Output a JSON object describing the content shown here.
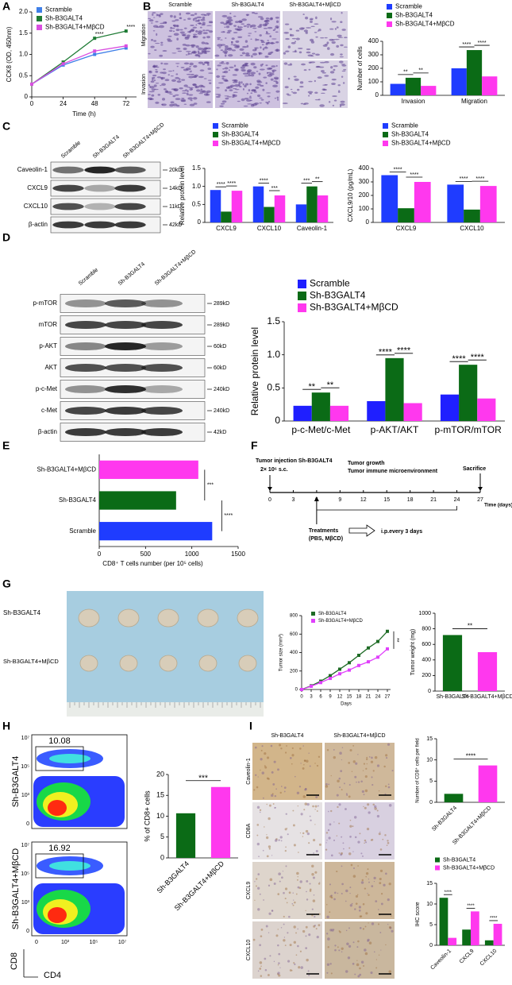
{
  "figure": {
    "panel_labels": [
      "A",
      "B",
      "C",
      "D",
      "E",
      "F",
      "G",
      "H",
      "I"
    ],
    "b_images": {
      "columns": [
        "Scramble",
        "Sh-B3GALT4",
        "Sh-B3GALT4+MβCD"
      ],
      "rows": [
        "Migration",
        "Invasion"
      ]
    },
    "c_blot": {
      "columns": [
        "Scramble",
        "Sh-B3GALT4",
        "Sh-B3GALT4+MβCD"
      ],
      "rows": [
        {
          "name": "Caveolin-1",
          "size": "20kD"
        },
        {
          "name": "CXCL9",
          "size": "14kD"
        },
        {
          "name": "CXCL10",
          "size": "11kD"
        },
        {
          "name": "β-actin",
          "size": "42kD"
        }
      ]
    },
    "d_blot": {
      "columns": [
        "Scramble",
        "Sh-B3GALT4",
        "Sh-B3GALT4+MβCD"
      ],
      "rows": [
        {
          "name": "p-mTOR",
          "size": "289kD"
        },
        {
          "name": "mTOR",
          "size": "289kD"
        },
        {
          "name": "p-AKT",
          "size": "60kD"
        },
        {
          "name": "AKT",
          "size": "60kD"
        },
        {
          "name": "p-c-Met",
          "size": "240kD"
        },
        {
          "name": "c-Met",
          "size": "240kD"
        },
        {
          "name": "β-actin",
          "size": "42kD"
        }
      ]
    },
    "f_timeline": {
      "injection": "Tumor injection Sh-B3GALT4",
      "dose": "2× 10⁶ s.c.",
      "growth": "Tumor growth",
      "microenvironment": "Tumor immune microenvironment",
      "sacrifice": "Sacrifice",
      "ticks": [
        0,
        3,
        6,
        9,
        12,
        15,
        18,
        21,
        24,
        27
      ],
      "axis_label": "Time (days)",
      "treatments": "Treatments",
      "agents": "(PBS, MβCD)",
      "schedule": "i.p.every 3 days"
    },
    "g_photo": {
      "rows": [
        "Sh-B3GALT4",
        "Sh-B3GALT4+MβCD"
      ]
    },
    "h_flow": {
      "rows": [
        "Sh-B3GALT4",
        "Sh-B3GALT4+MβCD"
      ],
      "gates": [
        "10.08",
        "16.92"
      ],
      "y_label": "CD8",
      "x_label": "CD4",
      "y_ticks": [
        "10⁷",
        "10⁵",
        "10³",
        "0"
      ],
      "x_ticks": [
        "0",
        "10³",
        "10⁵",
        "10⁷"
      ]
    },
    "i_ihc": {
      "columns": [
        "Sh-B3GALT4",
        "Sh-B3GALT4+MβCD"
      ],
      "rows": [
        "Caveolin-1",
        "CD8A",
        "CXCL9",
        "CXCL10"
      ]
    }
  },
  "chart_data": [
    {
      "type": "line",
      "ylabel": "CCK8 (OD, 450nm)",
      "xlabel": "Time (h)",
      "x": [
        0,
        24,
        48,
        72
      ],
      "xlim": [
        0,
        80
      ],
      "xticks": [
        0,
        24,
        48,
        72
      ],
      "ylim": [
        0,
        2
      ],
      "yticks": [
        0,
        0.5,
        {
          "value": 1,
          "label": "1.0"
        },
        1.5,
        {
          "value": 2,
          "label": "2.0"
        }
      ],
      "legend": true,
      "series": [
        {
          "name": "Scramble",
          "color": "#3f7fe8",
          "values": [
            0.3,
            0.75,
            1.0,
            1.15
          ]
        },
        {
          "name": "Sh-B3GALT4",
          "color": "#1e7b34",
          "values": [
            0.3,
            0.82,
            1.38,
            1.55
          ]
        },
        {
          "name": "Sh-B3GALT4+MβCD",
          "color": "#d94fe0",
          "values": [
            0.3,
            0.78,
            1.08,
            1.2
          ]
        }
      ],
      "annotations": [
        null,
        null,
        "****",
        "****"
      ]
    },
    {
      "type": "bar",
      "ylabel": "Number of cells",
      "categories": [
        "Invasion",
        "Migration"
      ],
      "ylim": [
        0,
        400
      ],
      "yticks": [
        0,
        100,
        200,
        300,
        400
      ],
      "legend": true,
      "series": [
        {
          "name": "Scramble",
          "color": "#1f3cff",
          "values": [
            85,
            200
          ]
        },
        {
          "name": "Sh-B3GALT4",
          "color": "#0b6b16",
          "values": [
            130,
            335
          ]
        },
        {
          "name": "Sh-B3GALT4+MβCD",
          "color": "#ff38ee",
          "values": [
            70,
            140
          ]
        }
      ],
      "annotations": [
        [
          "**",
          "**"
        ],
        [
          "****",
          "****"
        ]
      ]
    },
    {
      "type": "bar",
      "ylabel": "Relative protein level",
      "categories": [
        "CXCL9",
        "CXCL10",
        "Caveolin-1"
      ],
      "ylim": [
        0,
        1.5
      ],
      "yticks": [
        0,
        0.5,
        {
          "value": 1,
          "label": "1.0"
        },
        1.5
      ],
      "legend": true,
      "series": [
        {
          "name": "Scramble",
          "color": "#1f3cff",
          "values": [
            0.9,
            1.0,
            0.5
          ]
        },
        {
          "name": "Sh-B3GALT4",
          "color": "#0b6b16",
          "values": [
            0.3,
            0.43,
            1.0
          ]
        },
        {
          "name": "Sh-B3GALT4+MβCD",
          "color": "#ff38ee",
          "values": [
            0.88,
            0.75,
            0.75
          ]
        }
      ],
      "annotations": [
        [
          "****",
          "****"
        ],
        [
          "****",
          "***"
        ],
        [
          "***",
          "**"
        ]
      ]
    },
    {
      "type": "bar",
      "ylabel": "CXCL9/10 (pg/mL)",
      "categories": [
        "CXCL9",
        "CXCL10"
      ],
      "ylim": [
        0,
        400
      ],
      "yticks": [
        0,
        100,
        200,
        300,
        400
      ],
      "legend": true,
      "series": [
        {
          "name": "Scramble",
          "color": "#1f3cff",
          "values": [
            350,
            280
          ]
        },
        {
          "name": "Sh-B3GALT4",
          "color": "#0b6b16",
          "values": [
            105,
            95
          ]
        },
        {
          "name": "Sh-B3GALT4+MβCD",
          "color": "#ff38ee",
          "values": [
            300,
            270
          ]
        }
      ],
      "annotations": [
        [
          "****",
          "****"
        ],
        [
          "****",
          "****"
        ]
      ]
    },
    {
      "type": "bar",
      "ylabel": "Relative protein level",
      "categories": [
        "p-c-Met/c-Met",
        "p-AKT/AKT",
        "p-mTOR/mTOR"
      ],
      "ylim": [
        0,
        1.5
      ],
      "yticks": [
        0,
        0.5,
        {
          "value": 1,
          "label": "1.0"
        },
        1.5
      ],
      "legend": true,
      "series": [
        {
          "name": "Scramble",
          "color": "#1f1fff",
          "values": [
            0.23,
            0.3,
            0.4
          ]
        },
        {
          "name": "Sh-B3GALT4",
          "color": "#0b6b16",
          "values": [
            0.43,
            0.95,
            0.85
          ]
        },
        {
          "name": "Sh-B3GALT4+MβCD",
          "color": "#ff38ee",
          "values": [
            0.23,
            0.27,
            0.34
          ]
        }
      ],
      "annotations": [
        [
          "**",
          "**"
        ],
        [
          "****",
          "****"
        ],
        [
          "****",
          "****"
        ]
      ]
    },
    {
      "type": "bar",
      "horizontal": true,
      "xlabel": "CD8⁺ T cells number (per 10⁵ cells)",
      "categories": [
        "Sh-B3GALT4+MβCD",
        "Sh-B3GALT4",
        "Scramble"
      ],
      "values": [
        1070,
        830,
        1220
      ],
      "colors": [
        "#ff38ee",
        "#0b6b16",
        "#1f3cff"
      ],
      "xlim": [
        0,
        1500
      ],
      "xticks": [
        0,
        500,
        1000,
        1500
      ],
      "annotations": [
        "***",
        "****"
      ]
    },
    {
      "type": "line",
      "ylabel": "Tumor size (mm³)",
      "xlabel": "Days",
      "x": [
        0,
        3,
        6,
        9,
        12,
        15,
        18,
        21,
        24,
        27
      ],
      "xlim": [
        0,
        28
      ],
      "xticks": [
        0,
        3,
        6,
        9,
        12,
        15,
        18,
        21,
        24,
        27
      ],
      "ylim": [
        0,
        800
      ],
      "yticks": [
        0,
        200,
        400,
        600,
        800
      ],
      "legend": true,
      "series": [
        {
          "name": "Sh-B3GALT4",
          "color": "#1e6b25",
          "values": [
            0,
            40,
            90,
            150,
            220,
            290,
            370,
            450,
            520,
            630
          ]
        },
        {
          "name": "Sh-B3GALT4+MβCD",
          "color": "#e040fb",
          "values": [
            0,
            35,
            75,
            120,
            170,
            210,
            260,
            300,
            350,
            440
          ]
        }
      ],
      "annotation": "**"
    },
    {
      "type": "bar",
      "ylabel": "Tumor weight (mg)",
      "categories": [
        "Sh-B3GALT4",
        "Sh-B3GALT4+MβCD"
      ],
      "values": [
        720,
        500
      ],
      "colors": [
        "#0b6b16",
        "#ff38ee"
      ],
      "ylim": [
        0,
        1000
      ],
      "yticks": [
        0,
        200,
        400,
        600,
        800,
        1000
      ],
      "annotation": "**"
    },
    {
      "type": "bar",
      "ylabel": "% of CD8+ cells",
      "categories": [
        "Sh-B3GALT4",
        "Sh-B3GALT4+MβCD"
      ],
      "values": [
        10.7,
        17
      ],
      "colors": [
        "#0b6b16",
        "#ff38ee"
      ],
      "ylim": [
        0,
        20
      ],
      "yticks": [
        0,
        5,
        10,
        15,
        20
      ],
      "annotation": "***"
    },
    {
      "type": "bar",
      "ylabel": "Number of CD8⁺ cells per field",
      "categories": [
        "Sh-B3GALT4",
        "Sh-B3GALT4+MβCD"
      ],
      "values": [
        2,
        8.7
      ],
      "colors": [
        "#0b6b16",
        "#ff38ee"
      ],
      "ylim": [
        0,
        15
      ],
      "yticks": [
        0,
        5,
        10,
        15
      ],
      "annotation": "****"
    },
    {
      "type": "bar",
      "ylabel": "IHC score",
      "categories": [
        "Caveolin-1",
        "CXCL9",
        "CXCL10"
      ],
      "ylim": [
        0,
        15
      ],
      "yticks": [
        0,
        5,
        10,
        15
      ],
      "legend": true,
      "series": [
        {
          "name": "Sh-B3GALT4",
          "color": "#0b6b16",
          "values": [
            11.5,
            3.8,
            1.2
          ]
        },
        {
          "name": "Sh-B3GALT4+MβCD",
          "color": "#ff38ee",
          "values": [
            1.8,
            8.2,
            5.2
          ]
        }
      ],
      "annotations": [
        [
          "****"
        ],
        [
          "****"
        ],
        [
          "****"
        ]
      ]
    }
  ]
}
